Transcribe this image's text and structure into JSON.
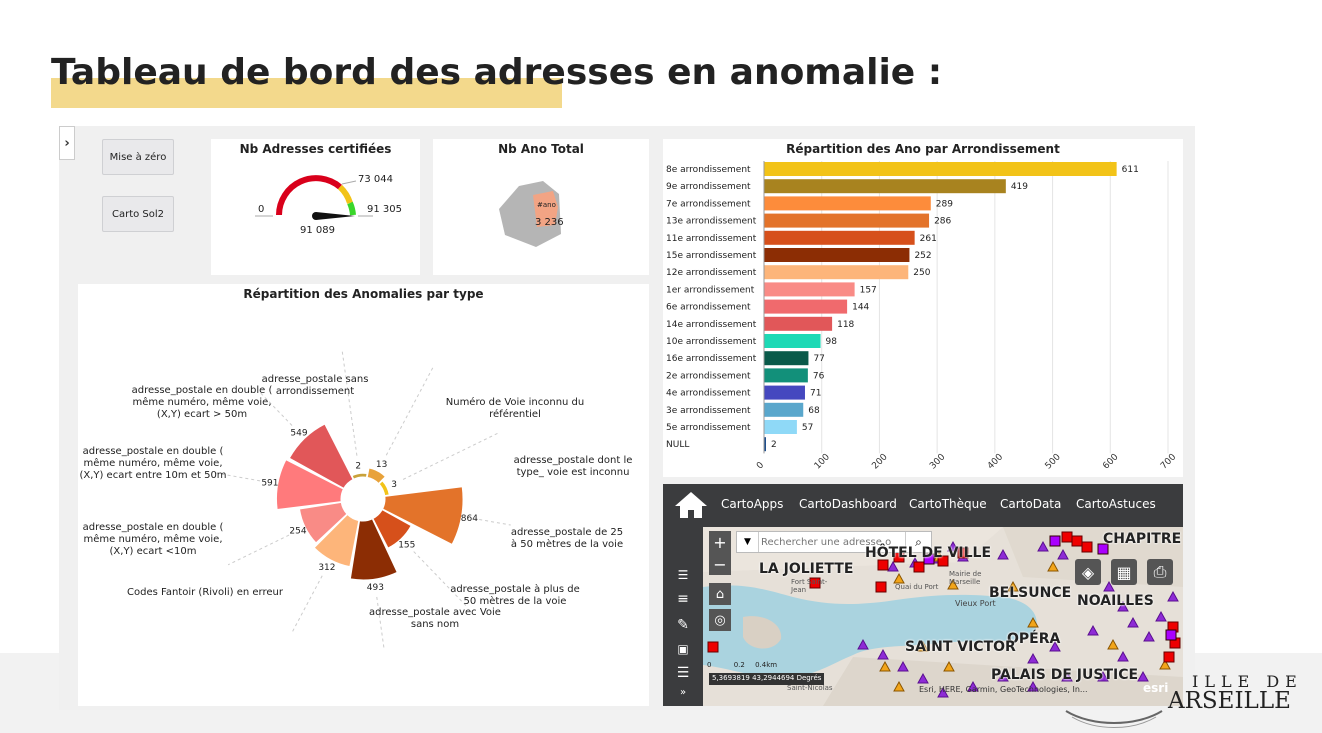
{
  "slide": {
    "title": "Tableau de bord des adresses en anomalie :",
    "logo_line1": "ILLE DE",
    "logo_line2": "ARSEILLE"
  },
  "dashboard": {
    "collapse_icon": "chevron-right-icon",
    "buttons": {
      "reset": "Mise à zéro",
      "carto": "Carto Sol2"
    },
    "gauge": {
      "title": "Nb Adresses certifiées",
      "min_label": "0",
      "max_label": "91 305",
      "target_label": "73 044",
      "value_label": "91 089",
      "value": 91089,
      "max": 91305,
      "target": 73044
    },
    "ano_total": {
      "title": "Nb Ano Total",
      "measure": "#ano",
      "value": "3 236"
    }
  },
  "chart_data": [
    {
      "type": "bar",
      "orientation": "horizontal",
      "title": "Répartition des Ano par Arrondissement",
      "categories": [
        "8e arrondissement",
        "9e arrondissement",
        "7e arrondissement",
        "13e arrondissement",
        "11e arrondissement",
        "15e arrondissement",
        "12e arrondissement",
        "1er arrondissement",
        "6e arrondissement",
        "14e arrondissement",
        "10e arrondissement",
        "16e arrondissement",
        "2e arrondissement",
        "4e arrondissement",
        "3e arrondissement",
        "5e arrondissement",
        "NULL"
      ],
      "values": [
        611,
        419,
        289,
        286,
        261,
        252,
        250,
        157,
        144,
        118,
        98,
        77,
        76,
        71,
        68,
        57,
        2
      ],
      "value_labels": [
        "611",
        "419",
        "289",
        "286",
        "261",
        "252",
        "250",
        "157",
        "144",
        "118",
        "98",
        "77",
        "76",
        "71",
        "68",
        "57",
        "2"
      ],
      "colors": [
        "#f2c318",
        "#a8831f",
        "#fd8c3b",
        "#e3732a",
        "#d6501b",
        "#8c2d04",
        "#fdb57a",
        "#f98b86",
        "#f06a6d",
        "#e15759",
        "#1dd9b5",
        "#0a5a4a",
        "#12907a",
        "#4548bf",
        "#5aa7cc",
        "#8fd9f7",
        "#1f4e8c"
      ],
      "xlim": [
        0,
        700
      ],
      "xticks": [
        "0",
        "100",
        "200",
        "300",
        "400",
        "500",
        "600",
        "700"
      ],
      "grid": true
    },
    {
      "type": "pie",
      "variant": "polar-area",
      "title": "Répartition des Anomalies par type",
      "categories": [
        "adresse_postale sans arrondissement",
        "Numéro de Voie inconnu du référentiel",
        "adresse_postale dont le type_ voie est inconnu",
        "adresse_postale de 25 à 50 mètres de la voie",
        "adresse_postale à plus de 50 mètres de la voie",
        "adresse_postale avec Voie sans nom",
        "Codes Fantoir (Rivoli) en erreur",
        "adresse_postale en double ( même numéro, même voie, (X,Y) ecart <10m",
        "adresse_postale en double ( même numéro, même voie, (X,Y) ecart entre 10m et 50m",
        "adresse_postale en double ( même numéro, même voie, (X,Y) ecart > 50m"
      ],
      "values": [
        2,
        13,
        3,
        864,
        155,
        493,
        312,
        254,
        591,
        549
      ],
      "value_labels": [
        "2",
        "13",
        "3",
        "864",
        "155",
        "493",
        "312",
        "254",
        "591",
        "549"
      ],
      "colors": [
        "#c9a23a",
        "#e8a23a",
        "#f2c318",
        "#e3732a",
        "#d6501b",
        "#8c2d04",
        "#fdb57a",
        "#f98b86",
        "#ff7a7c",
        "#e15759"
      ]
    }
  ],
  "map": {
    "nav": [
      "CartoApps",
      "CartoDashboard",
      "CartoThèque",
      "CartoData",
      "CartoAstuces"
    ],
    "search_placeholder": "Rechercher une adresse o",
    "places": [
      "HÔTEL DE VILLE",
      "LA JOLIETTE",
      "CHAPITRE",
      "BELSUNCE",
      "NOAILLES",
      "OPÉRA",
      "SAINT VICTOR",
      "PALAIS DE JUSTICE"
    ],
    "small_places": [
      "Fort Saint-Jean",
      "Quai du Port",
      "Mairie de Marseille",
      "Vieux Port",
      "Saint-Nicolas"
    ],
    "scale_labels": [
      "0",
      "0.2",
      "0.4km"
    ],
    "coords": "5,3693819 43,2944694 Degrés",
    "attribution": "Esri, HERE, Garmin, GeoTechnologies, In...",
    "esri": "esri"
  }
}
